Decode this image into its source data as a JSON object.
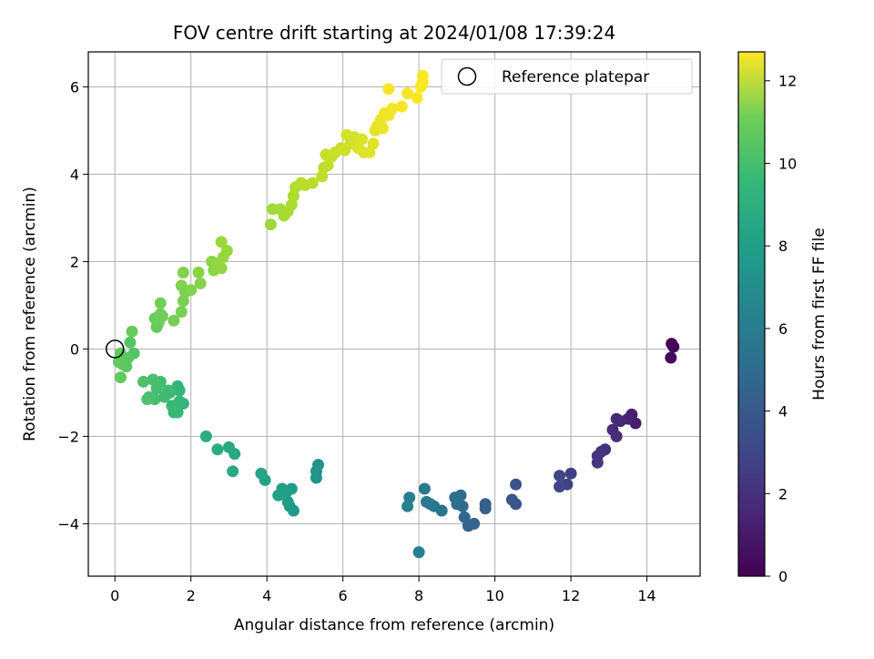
{
  "chart_data": {
    "type": "scatter",
    "title": "FOV centre drift starting at 2024/01/08 17:39:24",
    "xlabel": "Angular distance from reference (arcmin)",
    "ylabel": "Rotation from reference (arcmin)",
    "xlim": [
      -0.7,
      15.4
    ],
    "ylim": [
      -5.2,
      6.8
    ],
    "xticks": [
      0,
      2,
      4,
      6,
      8,
      10,
      12,
      14
    ],
    "yticks": [
      -4,
      -2,
      0,
      2,
      4,
      6
    ],
    "xticklabels": [
      "0",
      "2",
      "4",
      "6",
      "8",
      "10",
      "12",
      "14"
    ],
    "yticklabels": [
      "−4",
      "−2",
      "0",
      "2",
      "4",
      "6"
    ],
    "grid": true,
    "colormap": "viridis",
    "colorbar": {
      "label": "Hours from first FF file",
      "range": [
        0,
        12.7
      ],
      "ticks": [
        0,
        2,
        4,
        6,
        8,
        10,
        12
      ],
      "ticklabels": [
        "0",
        "2",
        "4",
        "6",
        "8",
        "10",
        "12"
      ]
    },
    "reference_marker": {
      "x": 0,
      "y": 0,
      "label": "Reference platepar"
    },
    "legend": {
      "entries": [
        "Reference platepar"
      ],
      "position": "upper right"
    },
    "points": [
      [
        14.65,
        0.12,
        0.1
      ],
      [
        14.7,
        0.05,
        0.2
      ],
      [
        14.63,
        -0.2,
        0.3
      ],
      [
        13.7,
        -1.7,
        1.0
      ],
      [
        13.6,
        -1.5,
        1.1
      ],
      [
        13.5,
        -1.6,
        1.2
      ],
      [
        13.3,
        -1.65,
        1.3
      ],
      [
        13.2,
        -1.6,
        1.4
      ],
      [
        13.1,
        -1.85,
        1.5
      ],
      [
        13.2,
        -2.0,
        1.6
      ],
      [
        12.9,
        -2.3,
        1.7
      ],
      [
        12.8,
        -2.35,
        1.8
      ],
      [
        12.7,
        -2.45,
        1.9
      ],
      [
        12.7,
        -2.6,
        2.0
      ],
      [
        12.0,
        -2.85,
        2.4
      ],
      [
        11.9,
        -3.1,
        2.5
      ],
      [
        11.7,
        -2.9,
        2.6
      ],
      [
        11.7,
        -3.15,
        2.7
      ],
      [
        10.55,
        -3.1,
        3.2
      ],
      [
        10.55,
        -3.55,
        3.3
      ],
      [
        10.45,
        -3.45,
        3.4
      ],
      [
        9.75,
        -3.55,
        3.8
      ],
      [
        9.75,
        -3.65,
        3.9
      ],
      [
        9.45,
        -4.0,
        4.0
      ],
      [
        9.3,
        -4.05,
        4.1
      ],
      [
        9.2,
        -3.85,
        4.2
      ],
      [
        9.15,
        -3.6,
        4.3
      ],
      [
        9.1,
        -3.35,
        4.4
      ],
      [
        9.0,
        -3.55,
        4.5
      ],
      [
        8.95,
        -3.4,
        4.6
      ],
      [
        8.6,
        -3.7,
        4.9
      ],
      [
        8.4,
        -3.6,
        5.0
      ],
      [
        8.3,
        -3.55,
        5.1
      ],
      [
        8.2,
        -3.5,
        5.2
      ],
      [
        8.15,
        -3.2,
        5.3
      ],
      [
        8.0,
        -4.65,
        5.4
      ],
      [
        7.75,
        -3.4,
        5.5
      ],
      [
        7.7,
        -3.6,
        5.6
      ],
      [
        5.35,
        -2.65,
        6.4
      ],
      [
        5.3,
        -2.8,
        6.5
      ],
      [
        5.3,
        -2.95,
        6.6
      ],
      [
        4.7,
        -3.7,
        6.8
      ],
      [
        4.6,
        -3.6,
        6.9
      ],
      [
        4.55,
        -3.5,
        7.0
      ],
      [
        4.65,
        -3.2,
        7.05
      ],
      [
        4.5,
        -3.3,
        7.1
      ],
      [
        4.4,
        -3.2,
        7.15
      ],
      [
        4.3,
        -3.35,
        7.2
      ],
      [
        3.95,
        -3.0,
        7.3
      ],
      [
        3.85,
        -2.85,
        7.35
      ],
      [
        3.15,
        -2.4,
        7.6
      ],
      [
        3.1,
        -2.8,
        7.65
      ],
      [
        3.0,
        -2.25,
        7.7
      ],
      [
        2.7,
        -2.3,
        7.8
      ],
      [
        2.4,
        -2.0,
        7.9
      ],
      [
        1.8,
        -1.25,
        8.3
      ],
      [
        1.7,
        -0.95,
        8.35
      ],
      [
        1.65,
        -0.85,
        8.4
      ],
      [
        1.7,
        -1.2,
        8.45
      ],
      [
        1.65,
        -1.45,
        8.5
      ],
      [
        1.55,
        -1.45,
        8.55
      ],
      [
        1.5,
        -1.3,
        8.6
      ],
      [
        1.45,
        -1.0,
        8.65
      ],
      [
        1.4,
        -0.95,
        8.7
      ],
      [
        1.3,
        -1.1,
        8.75
      ],
      [
        1.2,
        -0.75,
        8.8
      ],
      [
        1.1,
        -0.9,
        8.85
      ],
      [
        1.05,
        -1.15,
        8.9
      ],
      [
        1.0,
        -0.7,
        8.95
      ],
      [
        0.9,
        -1.1,
        9.0
      ],
      [
        0.85,
        -1.15,
        9.05
      ],
      [
        0.75,
        -0.75,
        9.1
      ],
      [
        0.5,
        -0.1,
        9.2
      ],
      [
        0.4,
        0.15,
        9.25
      ],
      [
        0.35,
        -0.2,
        9.3
      ],
      [
        0.3,
        -0.4,
        9.35
      ],
      [
        0.25,
        -0.25,
        9.4
      ],
      [
        0.2,
        -0.35,
        9.45
      ],
      [
        0.15,
        -0.1,
        9.5
      ],
      [
        0.1,
        -0.3,
        9.55
      ],
      [
        0.15,
        -0.65,
        9.6
      ],
      [
        0.45,
        0.4,
        9.65
      ],
      [
        1.1,
        0.5,
        9.7
      ],
      [
        1.05,
        0.7,
        9.75
      ],
      [
        1.15,
        0.6,
        9.8
      ],
      [
        1.2,
        0.8,
        9.85
      ],
      [
        1.25,
        0.75,
        9.9
      ],
      [
        1.2,
        1.05,
        9.95
      ],
      [
        1.55,
        0.65,
        10.0
      ],
      [
        1.75,
        0.85,
        10.05
      ],
      [
        1.8,
        1.1,
        10.1
      ],
      [
        1.85,
        1.3,
        10.15
      ],
      [
        1.75,
        1.45,
        10.2
      ],
      [
        1.8,
        1.75,
        10.25
      ],
      [
        2.0,
        1.35,
        10.3
      ],
      [
        2.25,
        1.5,
        10.35
      ],
      [
        2.2,
        1.75,
        10.4
      ],
      [
        2.55,
        2.0,
        10.45
      ],
      [
        2.6,
        1.8,
        10.5
      ],
      [
        2.7,
        1.95,
        10.55
      ],
      [
        2.8,
        1.85,
        10.6
      ],
      [
        2.85,
        2.1,
        10.65
      ],
      [
        2.95,
        2.25,
        10.7
      ],
      [
        2.8,
        2.45,
        10.75
      ],
      [
        4.1,
        2.85,
        10.85
      ],
      [
        4.15,
        3.2,
        10.9
      ],
      [
        4.35,
        3.2,
        10.95
      ],
      [
        4.45,
        3.05,
        11.0
      ],
      [
        4.55,
        3.15,
        11.05
      ],
      [
        4.65,
        3.3,
        11.1
      ],
      [
        4.7,
        3.5,
        11.15
      ],
      [
        4.75,
        3.7,
        11.2
      ],
      [
        4.9,
        3.8,
        11.25
      ],
      [
        5.0,
        3.75,
        11.3
      ],
      [
        5.2,
        3.8,
        11.35
      ],
      [
        5.45,
        3.95,
        11.4
      ],
      [
        5.5,
        4.15,
        11.45
      ],
      [
        5.6,
        4.2,
        11.5
      ],
      [
        5.7,
        4.4,
        11.55
      ],
      [
        5.55,
        4.45,
        11.6
      ],
      [
        5.8,
        4.5,
        11.65
      ],
      [
        5.95,
        4.6,
        11.7
      ],
      [
        6.05,
        4.55,
        11.75
      ],
      [
        6.2,
        4.7,
        11.8
      ],
      [
        6.1,
        4.9,
        11.85
      ],
      [
        6.3,
        4.85,
        11.9
      ],
      [
        6.4,
        4.6,
        11.95
      ],
      [
        6.5,
        4.8,
        12.0
      ],
      [
        6.55,
        4.5,
        12.05
      ],
      [
        6.7,
        4.5,
        12.1
      ],
      [
        6.8,
        4.7,
        12.15
      ],
      [
        6.85,
        5.0,
        12.2
      ],
      [
        6.9,
        5.1,
        12.25
      ],
      [
        7.0,
        5.25,
        12.3
      ],
      [
        7.05,
        5.05,
        12.35
      ],
      [
        7.1,
        5.4,
        12.4
      ],
      [
        7.2,
        5.35,
        12.45
      ],
      [
        7.3,
        5.5,
        12.5
      ],
      [
        7.55,
        5.55,
        12.55
      ],
      [
        7.2,
        5.95,
        12.55
      ],
      [
        7.7,
        5.85,
        12.6
      ],
      [
        7.95,
        5.75,
        12.6
      ],
      [
        8.05,
        6.0,
        12.65
      ],
      [
        8.1,
        6.1,
        12.65
      ],
      [
        8.1,
        6.25,
        12.7
      ]
    ]
  }
}
